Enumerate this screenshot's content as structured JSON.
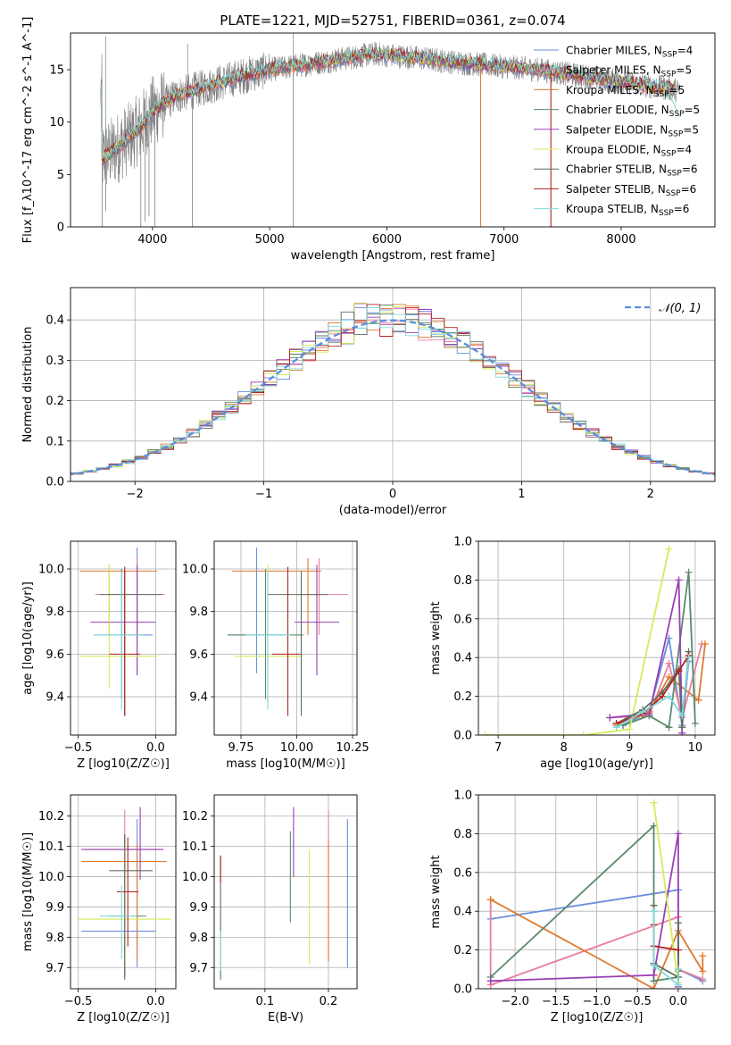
{
  "colors": {
    "chabrier_miles": "#6a8fdc",
    "salpeter_miles": "#e97f9a",
    "kroupa_miles": "#e07a2e",
    "chabrier_elodie": "#5a8a6a",
    "salpeter_elodie": "#9a3fb5",
    "kroupa_elodie": "#d4ec5a",
    "chabrier_stelib": "#5f6f5f",
    "salpeter_stelib": "#b22222",
    "kroupa_stelib": "#7fd8dc",
    "observed": "#808080",
    "gaussian": "#5b8cdc"
  },
  "chart_data": [
    {
      "id": "spectrum",
      "type": "line",
      "title": "PLATE=1221, MJD=52751, FIBERID=0361, z=0.074",
      "xlabel": "wavelength [Angstrom, rest frame]",
      "ylabel": "Flux [f_λ10^-17 erg cm^-2 s^-1 A^-1]",
      "xlim": [
        3300,
        8800
      ],
      "ylim": [
        0,
        18.5
      ],
      "xticks": [
        4000,
        5000,
        6000,
        7000,
        8000
      ],
      "yticks": [
        0,
        5,
        10,
        15
      ],
      "legend_position": "top-right",
      "legend": [
        "Chabrier MILES, N_SSP=4",
        "Salpeter MILES, N_SSP=5",
        "Kroupa MILES, N_SSP=5",
        "Chabrier ELODIE, N_SSP=5",
        "Salpeter ELODIE, N_SSP=5",
        "Kroupa ELODIE, N_SSP=4",
        "Chabrier STELIB, N_SSP=6",
        "Salpeter STELIB, N_SSP=6",
        "Kroupa STELIB, N_SSP=6"
      ],
      "continuum": [
        [
          3570,
          6.5
        ],
        [
          3700,
          7.5
        ],
        [
          3800,
          8.5
        ],
        [
          3900,
          9.5
        ],
        [
          4000,
          11.0
        ],
        [
          4200,
          12.5
        ],
        [
          4500,
          13.5
        ],
        [
          4800,
          14.5
        ],
        [
          5000,
          15.0
        ],
        [
          5300,
          15.5
        ],
        [
          5600,
          16.0
        ],
        [
          5900,
          16.5
        ],
        [
          6200,
          16.2
        ],
        [
          6500,
          15.8
        ],
        [
          6800,
          15.5
        ],
        [
          7000,
          15.3
        ],
        [
          7300,
          15.0
        ],
        [
          7600,
          14.5
        ],
        [
          7900,
          14.0
        ],
        [
          8200,
          13.5
        ],
        [
          8400,
          13.2
        ],
        [
          8500,
          13.0
        ]
      ]
    },
    {
      "id": "residuals",
      "type": "histogram",
      "xlabel": "(data-model)/error",
      "ylabel": "Normed distribution",
      "xlim": [
        -2.5,
        2.5
      ],
      "ylim": [
        0,
        0.48
      ],
      "xticks": [
        -2,
        -1,
        0,
        1,
        2
      ],
      "yticks": [
        0.0,
        0.1,
        0.2,
        0.3,
        0.4
      ],
      "grid": true,
      "legend": [
        "𝒩(0, 1)"
      ],
      "legend_position": "top-right",
      "bin_width": 0.1,
      "bin_start": -2.5,
      "reference_curve": "gaussian N(0,1)"
    },
    {
      "id": "age-vs-Z",
      "type": "errorbar",
      "xlabel": "Z [log10(Z/Z☉)]",
      "ylabel": "age  [log10(age/yr)]",
      "xlim": [
        -0.55,
        0.13
      ],
      "ylim": [
        9.22,
        10.13
      ],
      "xticks": [
        -0.5,
        0.0
      ],
      "yticks": [
        9.4,
        9.6,
        9.8,
        10.0
      ],
      "grid": true,
      "points": [
        {
          "series": "chabrier_miles",
          "x": -0.12,
          "xerr": [
            0.1,
            0.1
          ],
          "y": 9.69,
          "yerr": [
            0.18,
            0.41
          ]
        },
        {
          "series": "salpeter_miles",
          "x": -0.12,
          "xerr": [
            0.27,
            0.18
          ],
          "y": 9.88,
          "yerr": [
            0.19,
            0.17
          ]
        },
        {
          "series": "kroupa_miles",
          "x": -0.3,
          "xerr": [
            0.19,
            0.31
          ],
          "y": 9.99,
          "yerr": [
            0.3,
            0.03
          ]
        },
        {
          "series": "chabrier_elodie",
          "x": -0.22,
          "xerr": [
            0.18,
            0.14
          ],
          "y": 9.69,
          "yerr": [
            0.3,
            0.31
          ]
        },
        {
          "series": "salpeter_elodie",
          "x": -0.12,
          "xerr": [
            0.3,
            0.12
          ],
          "y": 9.75,
          "yerr": [
            0.25,
            0.27
          ]
        },
        {
          "series": "kroupa_elodie",
          "x": -0.3,
          "xerr": [
            0.19,
            0.31
          ],
          "y": 9.59,
          "yerr": [
            0.15,
            0.43
          ]
        },
        {
          "series": "chabrier_stelib",
          "x": -0.2,
          "xerr": [
            0.16,
            0.24
          ],
          "y": 9.88,
          "yerr": [
            0.57,
            0.11
          ]
        },
        {
          "series": "salpeter_stelib",
          "x": -0.2,
          "xerr": [
            0.1,
            0.1
          ],
          "y": 9.6,
          "yerr": [
            0.29,
            0.41
          ]
        },
        {
          "series": "kroupa_stelib",
          "x": -0.22,
          "xerr": [
            0.18,
            0.14
          ],
          "y": 9.69,
          "yerr": [
            0.35,
            0.3
          ]
        }
      ]
    },
    {
      "id": "age-vs-mass",
      "type": "errorbar",
      "xlabel": "mass [log10(M/M☉)]",
      "ylabel": "",
      "xlim": [
        9.63,
        10.27
      ],
      "ylim": [
        9.22,
        10.13
      ],
      "xticks": [
        9.75,
        10.0,
        10.25
      ],
      "yticks": [
        9.4,
        9.6,
        9.8,
        10.0
      ],
      "grid": true,
      "points": [
        {
          "series": "chabrier_miles",
          "x": 9.82,
          "xerr": [
            0.13,
            0.13
          ],
          "y": 9.69,
          "yerr": [
            0.18,
            0.41
          ]
        },
        {
          "series": "salpeter_miles",
          "x": 10.1,
          "xerr": [
            0.1,
            0.13
          ],
          "y": 9.88,
          "yerr": [
            0.19,
            0.17
          ]
        },
        {
          "series": "kroupa_miles",
          "x": 10.05,
          "xerr": [
            0.34,
            0.06
          ],
          "y": 9.99,
          "yerr": [
            0.3,
            0.06
          ]
        },
        {
          "series": "chabrier_elodie",
          "x": 9.86,
          "xerr": [
            0.17,
            0.17
          ],
          "y": 9.69,
          "yerr": [
            0.3,
            0.31
          ]
        },
        {
          "series": "salpeter_elodie",
          "x": 10.09,
          "xerr": [
            0.1,
            0.1
          ],
          "y": 9.75,
          "yerr": [
            0.25,
            0.27
          ]
        },
        {
          "series": "kroupa_elodie",
          "x": 9.87,
          "xerr": [
            0.15,
            0.15
          ],
          "y": 9.59,
          "yerr": [
            0.15,
            0.43
          ]
        },
        {
          "series": "chabrier_stelib",
          "x": 10.02,
          "xerr": [
            0.15,
            0.12
          ],
          "y": 9.88,
          "yerr": [
            0.57,
            0.11
          ]
        },
        {
          "series": "salpeter_stelib",
          "x": 9.96,
          "xerr": [
            0.07,
            0.06
          ],
          "y": 9.6,
          "yerr": [
            0.29,
            0.41
          ]
        },
        {
          "series": "kroupa_stelib",
          "x": 9.87,
          "xerr": [
            0.1,
            0.1
          ],
          "y": 9.69,
          "yerr": [
            0.35,
            0.3
          ]
        }
      ]
    },
    {
      "id": "massweight-vs-age",
      "type": "line",
      "xlabel": "age  [log10(age/yr)]",
      "ylabel": "mass weight",
      "xlim": [
        6.7,
        10.3
      ],
      "ylim": [
        0,
        1.0
      ],
      "xticks": [
        7,
        8,
        9,
        10
      ],
      "yticks": [
        0.0,
        0.2,
        0.4,
        0.6,
        0.8,
        1.0
      ],
      "grid": true,
      "series": [
        {
          "series": "chabrier_miles",
          "x": [
            8.9,
            9.3,
            9.6,
            9.8,
            9.9
          ],
          "y": [
            0.05,
            0.12,
            0.5,
            0.05,
            0.38
          ]
        },
        {
          "series": "salpeter_miles",
          "x": [
            8.7,
            9.3,
            9.6,
            9.8,
            10.1
          ],
          "y": [
            0.09,
            0.1,
            0.37,
            0.09,
            0.47
          ]
        },
        {
          "series": "kroupa_miles",
          "x": [
            8.8,
            9.3,
            9.6,
            10.05,
            10.15
          ],
          "y": [
            0.05,
            0.12,
            0.3,
            0.18,
            0.47
          ]
        },
        {
          "series": "chabrier_elodie",
          "x": [
            8.9,
            9.3,
            9.6,
            9.9,
            10.0
          ],
          "y": [
            0.05,
            0.1,
            0.04,
            0.84,
            0.06
          ]
        },
        {
          "series": "salpeter_elodie",
          "x": [
            8.7,
            9.3,
            9.75,
            9.8
          ],
          "y": [
            0.09,
            0.11,
            0.8,
            0.01
          ]
        },
        {
          "series": "kroupa_elodie",
          "x": [
            6.8,
            8.3,
            9.0,
            9.6
          ],
          "y": [
            0.0,
            0.0,
            0.03,
            0.96
          ]
        },
        {
          "series": "chabrier_stelib",
          "x": [
            8.8,
            9.2,
            9.5,
            9.75,
            9.8,
            9.9
          ],
          "y": [
            0.06,
            0.13,
            0.22,
            0.34,
            0.04,
            0.43
          ]
        },
        {
          "series": "salpeter_stelib",
          "x": [
            8.8,
            9.2,
            9.5,
            9.75,
            9.9
          ],
          "y": [
            0.06,
            0.11,
            0.2,
            0.33,
            0.41
          ]
        },
        {
          "series": "kroupa_stelib",
          "x": [
            8.8,
            9.2,
            9.6,
            9.8,
            9.9
          ],
          "y": [
            0.04,
            0.12,
            0.2,
            0.1,
            0.4
          ]
        }
      ]
    },
    {
      "id": "mass-vs-Z",
      "type": "errorbar",
      "xlabel": "Z [log10(Z/Z☉)]",
      "ylabel": "mass [log10(M/M☉)]",
      "xlim": [
        -0.55,
        0.13
      ],
      "ylim": [
        9.63,
        10.27
      ],
      "xticks": [
        -0.5,
        0.0
      ],
      "yticks": [
        9.7,
        9.8,
        9.9,
        10.0,
        10.1,
        10.2
      ],
      "grid": true,
      "points": [
        {
          "series": "chabrier_miles",
          "x": -0.12,
          "xerr": [
            0.36,
            0.12
          ],
          "y": 9.82,
          "yerr": [
            0.12,
            0.37
          ]
        },
        {
          "series": "salpeter_miles",
          "x": -0.2,
          "xerr": [
            0.25,
            0.25
          ],
          "y": 10.09,
          "yerr": [
            0.33,
            0.13
          ]
        },
        {
          "series": "kroupa_miles",
          "x": -0.12,
          "xerr": [
            0.36,
            0.19
          ],
          "y": 10.05,
          "yerr": [
            0.33,
            0.06
          ]
        },
        {
          "series": "chabrier_elodie",
          "x": -0.2,
          "xerr": [
            0.1,
            0.14
          ],
          "y": 9.87,
          "yerr": [
            0.2,
            0.27
          ]
        },
        {
          "series": "salpeter_elodie",
          "x": -0.1,
          "xerr": [
            0.38,
            0.15
          ],
          "y": 10.09,
          "yerr": [
            0.1,
            0.14
          ]
        },
        {
          "series": "kroupa_elodie",
          "x": -0.2,
          "xerr": [
            0.3,
            0.3
          ],
          "y": 9.86,
          "yerr": [
            0.15,
            0.25
          ]
        },
        {
          "series": "chabrier_stelib",
          "x": -0.2,
          "xerr": [
            0.1,
            0.18
          ],
          "y": 10.02,
          "yerr": [
            0.36,
            0.12
          ]
        },
        {
          "series": "salpeter_stelib",
          "x": -0.18,
          "xerr": [
            0.07,
            0.07
          ],
          "y": 9.95,
          "yerr": [
            0.18,
            0.18
          ]
        },
        {
          "series": "kroupa_stelib",
          "x": -0.22,
          "xerr": [
            0.14,
            0.1
          ],
          "y": 9.87,
          "yerr": [
            0.14,
            0.1
          ]
        }
      ]
    },
    {
      "id": "mass-vs-EBV",
      "type": "errorbar",
      "xlabel": "E(B-V)",
      "ylabel": "",
      "xlim": [
        0.02,
        0.245
      ],
      "ylim": [
        9.63,
        10.27
      ],
      "xticks": [
        0.1,
        0.2
      ],
      "yticks": [
        9.7,
        9.8,
        9.9,
        10.0,
        10.1,
        10.2
      ],
      "grid": true,
      "points": [
        {
          "series": "chabrier_miles",
          "x": 0.23,
          "y": 9.82,
          "yerr": [
            0.12,
            0.37
          ]
        },
        {
          "series": "salpeter_miles",
          "x": 0.2,
          "y": 10.09,
          "yerr": [
            0.37,
            0.13
          ]
        },
        {
          "series": "kroupa_miles",
          "x": 0.2,
          "y": 10.05,
          "yerr": [
            0.33,
            0.07
          ]
        },
        {
          "series": "chabrier_elodie",
          "x": 0.14,
          "y": 10.0,
          "yerr": [
            0.15,
            0.15
          ]
        },
        {
          "series": "salpeter_elodie",
          "x": 0.145,
          "y": 10.09,
          "yerr": [
            0.09,
            0.14
          ]
        },
        {
          "series": "kroupa_elodie",
          "x": 0.17,
          "y": 9.86,
          "yerr": [
            0.15,
            0.23
          ]
        },
        {
          "series": "chabrier_stelib",
          "x": 0.03,
          "y": 9.87,
          "yerr": [
            0.21,
            0.2
          ]
        },
        {
          "series": "salpeter_stelib",
          "x": 0.03,
          "y": 10.02,
          "yerr": [
            0.04,
            0.05
          ]
        },
        {
          "series": "kroupa_stelib",
          "x": 0.03,
          "y": 9.75,
          "yerr": [
            0.06,
            0.07
          ]
        }
      ]
    },
    {
      "id": "massweight-vs-Z",
      "type": "line",
      "xlabel": "Z [log10(Z/Z☉)]",
      "ylabel": "mass weight",
      "xlim": [
        -2.45,
        0.45
      ],
      "ylim": [
        0,
        1.0
      ],
      "xticks": [
        -2.0,
        -1.5,
        -1.0,
        -0.5,
        0.0
      ],
      "yticks": [
        0.0,
        0.2,
        0.4,
        0.6,
        0.8,
        1.0
      ],
      "grid": true,
      "series": [
        {
          "series": "chabrier_miles",
          "x": [
            -2.3,
            0.0,
            0.0,
            0.3
          ],
          "y": [
            0.36,
            0.51,
            0.1,
            0.04
          ]
        },
        {
          "series": "salpeter_miles",
          "x": [
            -2.3,
            -2.3,
            0.0,
            0.0,
            0.3
          ],
          "y": [
            0.46,
            0.02,
            0.37,
            0.1,
            0.05
          ]
        },
        {
          "series": "kroupa_miles",
          "x": [
            -2.3,
            -0.3,
            0.0,
            0.3,
            0.3
          ],
          "y": [
            0.46,
            0.0,
            0.3,
            0.09,
            0.17
          ]
        },
        {
          "series": "chabrier_elodie",
          "x": [
            -2.3,
            -0.3,
            -0.3,
            0.0,
            0.0
          ],
          "y": [
            0.06,
            0.84,
            0.04,
            0.06,
            0.09
          ]
        },
        {
          "series": "salpeter_elodie",
          "x": [
            -2.3,
            -0.3,
            0.0,
            0.0
          ],
          "y": [
            0.04,
            0.07,
            0.8,
            0.01
          ]
        },
        {
          "series": "kroupa_elodie",
          "x": [
            -0.3,
            0.0
          ],
          "y": [
            0.96,
            0.03
          ]
        },
        {
          "series": "chabrier_stelib",
          "x": [
            -0.3,
            -0.3,
            0.0,
            0.0
          ],
          "y": [
            0.43,
            0.13,
            0.06,
            0.34
          ]
        },
        {
          "series": "salpeter_stelib",
          "x": [
            -0.3,
            -0.3,
            0.0
          ],
          "y": [
            0.33,
            0.22,
            0.2
          ]
        },
        {
          "series": "kroupa_stelib",
          "x": [
            -0.3,
            -0.3,
            0.0,
            0.0
          ],
          "y": [
            0.4,
            0.12,
            0.02,
            0.1
          ]
        }
      ]
    }
  ],
  "series_order": [
    "chabrier_miles",
    "salpeter_miles",
    "kroupa_miles",
    "chabrier_elodie",
    "salpeter_elodie",
    "kroupa_elodie",
    "chabrier_stelib",
    "salpeter_stelib",
    "kroupa_stelib"
  ]
}
